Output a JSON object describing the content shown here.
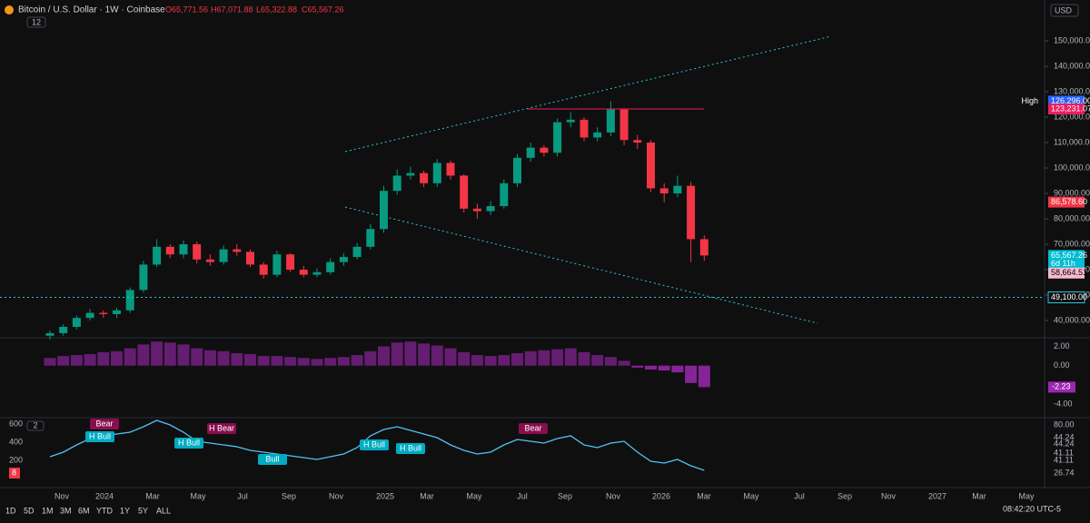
{
  "header": {
    "symbol": "Bitcoin / U.S. Dollar · 1W · Coinbase",
    "ohlc": [
      "O65,771.56",
      "H67,071.88",
      "L65,322.88",
      "C65,567.26"
    ],
    "indicator_count": "12",
    "currency": "USD"
  },
  "price_labels": [
    {
      "tag": "High",
      "value": 126296,
      "label": "126,296.00",
      "color": "#2962ff"
    },
    {
      "value": 123231.07,
      "label": "123,231.07",
      "color": "#e91e63"
    },
    {
      "value": 86578.6,
      "label": "86,578.60",
      "color": "#f23645"
    },
    {
      "value": 65567.26,
      "label": "65,567.26",
      "color": "#00bcd4",
      "countdown": "6d 11h"
    },
    {
      "value": 58664.51,
      "label": "58,664.51",
      "color": "#f8bbd0"
    },
    {
      "value": 49100,
      "label": "49,100.00",
      "color": "#0f0f0f"
    }
  ],
  "time_axis": [
    "Nov",
    "2024",
    "Mar",
    "May",
    "Jul",
    "Sep",
    "Nov",
    "2025",
    "Mar",
    "May",
    "Jul",
    "Sep",
    "Nov",
    "2026",
    "Mar",
    "May",
    "Jul",
    "Sep",
    "Nov",
    "2027",
    "Mar",
    "May"
  ],
  "annotations": [
    "Bear",
    "H Bull",
    "H Bull",
    "H Bear",
    "Bull",
    "H Bull",
    "H Bull",
    "Bear"
  ],
  "rsi_labels": [
    "80.00",
    "44.24",
    "44.24",
    "41.11",
    "41.11",
    "26.74"
  ],
  "volume_labels": [
    "600",
    "400",
    "200"
  ],
  "volume_badge": "8",
  "pane_count": "2",
  "timeframes": [
    "1D",
    "5D",
    "1M",
    "3M",
    "6M",
    "YTD",
    "1Y",
    "5Y",
    "ALL"
  ],
  "clock": "08:42:20 UTC-5",
  "chart_data": [
    {
      "type": "candlestick",
      "up_color": "#089981",
      "down_color": "#f23645",
      "ylim": [
        33200,
        166100
      ],
      "yticks": [
        {
          "value": 40000,
          "label": "40,000.00"
        },
        {
          "value": 50000,
          "label": "50,000.00"
        },
        {
          "value": 60000,
          "label": "60,000.00"
        },
        {
          "value": 70000,
          "label": "70,000.00"
        },
        {
          "value": 80000,
          "label": "80,000.00"
        },
        {
          "value": 90000,
          "label": "90,000.00"
        },
        {
          "value": 100000,
          "label": "100,000.00"
        },
        {
          "value": 110000,
          "label": "110,000.00"
        },
        {
          "value": 120000,
          "label": "120,000.00"
        },
        {
          "value": 130000,
          "label": "130,000.00"
        },
        {
          "value": 140000,
          "label": "140,000.00"
        },
        {
          "value": 150000,
          "label": "150,000.00"
        }
      ],
      "open": [
        34000,
        35000,
        37500,
        41000,
        43000,
        42500,
        44000,
        52000,
        62000,
        69000,
        66000,
        70000,
        64000,
        63000,
        68000,
        67000,
        62000,
        58000,
        66000,
        60000,
        58000,
        59000,
        63000,
        65000,
        69000,
        76000,
        91000,
        97000,
        98000,
        94000,
        102000,
        97000,
        84000,
        83000,
        85000,
        94000,
        104000,
        108000,
        106000,
        118000,
        119000,
        112000,
        114000,
        123000,
        111000,
        110000,
        92000,
        90000,
        93000,
        72000
      ],
      "high": [
        36000,
        38500,
        42000,
        44500,
        44000,
        45000,
        53000,
        63500,
        72000,
        70000,
        71500,
        71000,
        66000,
        69500,
        70000,
        68000,
        63000,
        67500,
        66500,
        61500,
        60500,
        64500,
        66500,
        70500,
        78000,
        93000,
        99500,
        100500,
        99000,
        103500,
        103000,
        97500,
        86000,
        87000,
        95500,
        105500,
        110000,
        109000,
        119500,
        122000,
        120000,
        116000,
        126296,
        123500,
        113000,
        111000,
        94000,
        97000,
        94500,
        73500
      ],
      "low": [
        32500,
        34000,
        36500,
        40000,
        41000,
        41000,
        43000,
        51000,
        61000,
        64500,
        64500,
        62500,
        61500,
        62000,
        65500,
        61000,
        56500,
        57000,
        59000,
        57000,
        57000,
        58000,
        61500,
        64000,
        68000,
        74500,
        89500,
        95500,
        92500,
        92500,
        95500,
        82500,
        80000,
        81500,
        84000,
        92500,
        102500,
        104500,
        104500,
        116000,
        110500,
        110500,
        112500,
        109000,
        107500,
        90500,
        86500,
        88500,
        63000,
        63500
      ],
      "close": [
        35000,
        37500,
        41000,
        43000,
        42500,
        44000,
        52000,
        62000,
        69000,
        66000,
        70000,
        64000,
        63000,
        68000,
        67000,
        62000,
        58000,
        66000,
        60000,
        58000,
        59000,
        63000,
        65000,
        69000,
        76000,
        91000,
        97000,
        98000,
        94000,
        102000,
        97000,
        84000,
        83000,
        85000,
        94000,
        104000,
        108000,
        106000,
        118000,
        119000,
        112000,
        114000,
        123000,
        111000,
        110000,
        92000,
        90000,
        93000,
        72000,
        65567.26
      ]
    },
    {
      "type": "bar",
      "color": "#9c27b0",
      "ylim": [
        -5.4,
        2.8
      ],
      "yticks": [
        {
          "value": 2,
          "label": "2.00"
        },
        {
          "value": 0,
          "label": "0.00"
        },
        {
          "value": -4,
          "label": "-4.00"
        }
      ],
      "values": [
        0.8,
        1.0,
        1.1,
        1.2,
        1.4,
        1.5,
        1.8,
        2.2,
        2.5,
        2.4,
        2.2,
        1.8,
        1.6,
        1.5,
        1.3,
        1.2,
        1.0,
        1.0,
        0.9,
        0.8,
        0.7,
        0.8,
        0.9,
        1.1,
        1.5,
        2.0,
        2.4,
        2.5,
        2.3,
        2.1,
        1.8,
        1.4,
        1.1,
        1.0,
        1.1,
        1.3,
        1.5,
        1.6,
        1.7,
        1.8,
        1.4,
        1.1,
        0.9,
        0.5,
        -0.2,
        -0.4,
        -0.5,
        -0.7,
        -1.8,
        -2.23
      ],
      "value_labels": {
        "49": "-2.23"
      }
    },
    {
      "type": "line",
      "color": "#4fc3f7",
      "ylim": [
        18,
        86
      ],
      "values": [
        45,
        50,
        58,
        65,
        68,
        70,
        72,
        78,
        85,
        80,
        72,
        62,
        60,
        58,
        56,
        52,
        50,
        48,
        46,
        44,
        42,
        45,
        48,
        55,
        68,
        75,
        78,
        74,
        70,
        66,
        58,
        52,
        48,
        50,
        58,
        64,
        62,
        60,
        65,
        68,
        58,
        55,
        60,
        62,
        50,
        40,
        38,
        42,
        35,
        30
      ]
    }
  ]
}
